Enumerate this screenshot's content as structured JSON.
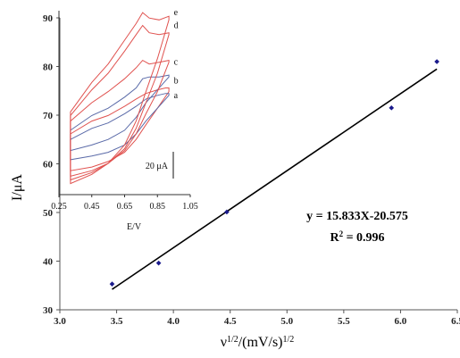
{
  "chart_data": [
    {
      "type": "scatter",
      "xlabel": "ν",
      "xlabel_sup1": "1/2",
      "xlabel_mid": "/(mV/s)",
      "xlabel_sup2": "1/2",
      "ylabel": "I/μA",
      "xlim": [
        3.0,
        6.5
      ],
      "ylim": [
        30,
        90
      ],
      "x_ticks": [
        "3.0",
        "3.5",
        "4.0",
        "4.5",
        "5.0",
        "5.5",
        "6.0",
        "6.5"
      ],
      "y_ticks": [
        "30",
        "40",
        "50",
        "60",
        "70",
        "80",
        "90"
      ],
      "grid": false,
      "marker_color": "#1a1a8c",
      "series": [
        {
          "x": [
            3.46,
            3.87,
            4.47,
            5.92,
            6.32
          ],
          "y": [
            35.3,
            39.6,
            50.1,
            71.5,
            81.0
          ]
        }
      ],
      "fit_line": {
        "slope": 15.833,
        "intercept": -20.575,
        "x_range": [
          3.46,
          6.32
        ]
      },
      "equation": "y = 15.833X-20.575",
      "r2_label": "R",
      "r2_sup": "2",
      "r2_value": " = 0.996"
    },
    {
      "type": "line",
      "role": "inset",
      "xlabel": "E/V",
      "x_ticks": [
        "0.25",
        "0.45",
        "0.65",
        "0.85",
        "1.05"
      ],
      "xlim": [
        0.25,
        1.05
      ],
      "ylim": [
        0,
        1
      ],
      "scale_bar_label": "20 μA",
      "curve_labels": [
        "e",
        "d",
        "c",
        "b",
        "a"
      ],
      "colors": {
        "red": "#e0524f",
        "blue": "#5a6aa8"
      },
      "curves": [
        {
          "label": "a",
          "color": "red",
          "upper": [
            [
              0.32,
              0.33
            ],
            [
              0.45,
              0.4
            ],
            [
              0.55,
              0.43
            ],
            [
              0.65,
              0.48
            ],
            [
              0.72,
              0.52
            ],
            [
              0.78,
              0.55
            ],
            [
              0.85,
              0.57
            ],
            [
              0.9,
              0.58
            ],
            [
              0.92,
              0.58
            ]
          ],
          "lower": [
            [
              0.32,
              0.13
            ],
            [
              0.45,
              0.15
            ],
            [
              0.55,
              0.18
            ],
            [
              0.65,
              0.23
            ],
            [
              0.72,
              0.3
            ],
            [
              0.78,
              0.38
            ],
            [
              0.85,
              0.47
            ],
            [
              0.92,
              0.56
            ]
          ]
        },
        {
          "label": "a",
          "color": "blue",
          "upper": [
            [
              0.32,
              0.3
            ],
            [
              0.45,
              0.36
            ],
            [
              0.55,
              0.39
            ],
            [
              0.65,
              0.44
            ],
            [
              0.72,
              0.48
            ],
            [
              0.78,
              0.52
            ],
            [
              0.85,
              0.54
            ],
            [
              0.9,
              0.55
            ],
            [
              0.92,
              0.55
            ]
          ],
          "lower": [
            [
              0.32,
              0.19
            ],
            [
              0.45,
              0.21
            ],
            [
              0.55,
              0.23
            ],
            [
              0.65,
              0.27
            ],
            [
              0.72,
              0.33
            ],
            [
              0.78,
              0.4
            ],
            [
              0.85,
              0.47
            ],
            [
              0.92,
              0.54
            ]
          ]
        },
        {
          "label": "b",
          "color": "blue",
          "upper": [
            [
              0.32,
              0.35
            ],
            [
              0.45,
              0.43
            ],
            [
              0.55,
              0.47
            ],
            [
              0.65,
              0.53
            ],
            [
              0.72,
              0.58
            ],
            [
              0.76,
              0.63
            ],
            [
              0.8,
              0.64
            ],
            [
              0.86,
              0.64
            ],
            [
              0.92,
              0.65
            ]
          ],
          "lower": [
            [
              0.32,
              0.24
            ],
            [
              0.45,
              0.27
            ],
            [
              0.55,
              0.3
            ],
            [
              0.65,
              0.35
            ],
            [
              0.72,
              0.42
            ],
            [
              0.78,
              0.5
            ],
            [
              0.85,
              0.57
            ],
            [
              0.92,
              0.64
            ]
          ]
        },
        {
          "label": "c",
          "color": "red",
          "upper": [
            [
              0.32,
              0.4
            ],
            [
              0.45,
              0.5
            ],
            [
              0.55,
              0.56
            ],
            [
              0.65,
              0.63
            ],
            [
              0.72,
              0.69
            ],
            [
              0.76,
              0.73
            ],
            [
              0.8,
              0.71
            ],
            [
              0.86,
              0.72
            ],
            [
              0.92,
              0.73
            ]
          ],
          "lower": [
            [
              0.32,
              0.1
            ],
            [
              0.45,
              0.13
            ],
            [
              0.55,
              0.17
            ],
            [
              0.65,
              0.24
            ],
            [
              0.72,
              0.33
            ],
            [
              0.78,
              0.44
            ],
            [
              0.85,
              0.56
            ],
            [
              0.92,
              0.72
            ]
          ]
        },
        {
          "label": "d",
          "color": "red",
          "upper": [
            [
              0.32,
              0.43
            ],
            [
              0.45,
              0.57
            ],
            [
              0.55,
              0.66
            ],
            [
              0.65,
              0.78
            ],
            [
              0.72,
              0.87
            ],
            [
              0.76,
              0.92
            ],
            [
              0.8,
              0.88
            ],
            [
              0.86,
              0.87
            ],
            [
              0.92,
              0.88
            ]
          ],
          "lower": [
            [
              0.32,
              0.08
            ],
            [
              0.45,
              0.12
            ],
            [
              0.55,
              0.17
            ],
            [
              0.65,
              0.25
            ],
            [
              0.72,
              0.36
            ],
            [
              0.78,
              0.5
            ],
            [
              0.85,
              0.66
            ],
            [
              0.92,
              0.87
            ]
          ]
        },
        {
          "label": "e",
          "color": "red",
          "upper": [
            [
              0.32,
              0.45
            ],
            [
              0.45,
              0.61
            ],
            [
              0.55,
              0.71
            ],
            [
              0.65,
              0.84
            ],
            [
              0.72,
              0.93
            ],
            [
              0.76,
              0.99
            ],
            [
              0.8,
              0.96
            ],
            [
              0.86,
              0.95
            ],
            [
              0.92,
              0.97
            ]
          ],
          "lower": [
            [
              0.32,
              0.06
            ],
            [
              0.45,
              0.11
            ],
            [
              0.55,
              0.17
            ],
            [
              0.65,
              0.27
            ],
            [
              0.72,
              0.4
            ],
            [
              0.78,
              0.56
            ],
            [
              0.85,
              0.74
            ],
            [
              0.92,
              0.95
            ]
          ]
        }
      ]
    }
  ]
}
